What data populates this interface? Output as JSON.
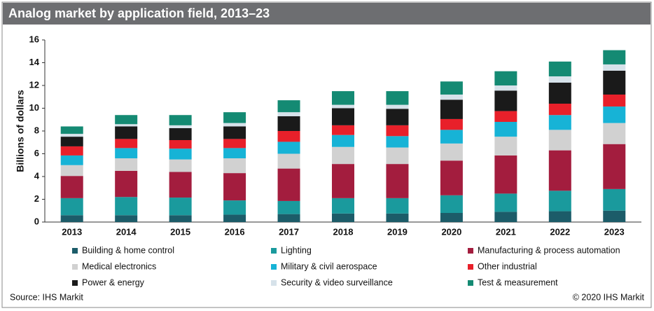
{
  "chart_data": {
    "type": "stacked_bar",
    "title": "Analog market by application field, 2013–23",
    "y_label": "Billions of dollars",
    "source": "Source: IHS Markit",
    "credit": "© 2020 IHS Markit",
    "categories": [
      "2013",
      "2014",
      "2015",
      "2016",
      "2017",
      "2018",
      "2019",
      "2020",
      "2021",
      "2022",
      "2023"
    ],
    "ylim": [
      0,
      16
    ],
    "yticks": [
      0,
      2,
      4,
      6,
      8,
      10,
      12,
      14,
      16
    ],
    "grid": false,
    "series": [
      {
        "name": "Building & home control",
        "color": "#1c5c69",
        "values": [
          0.6,
          0.6,
          0.6,
          0.65,
          0.7,
          0.75,
          0.75,
          0.8,
          0.9,
          0.95,
          1.0
        ]
      },
      {
        "name": "Lighting",
        "color": "#1a9a9d",
        "values": [
          1.5,
          1.6,
          1.55,
          1.25,
          1.15,
          1.35,
          1.35,
          1.55,
          1.6,
          1.8,
          1.9
        ]
      },
      {
        "name": "Manufacturing & process automation",
        "color": "#a31d3e",
        "values": [
          1.95,
          2.3,
          2.25,
          2.4,
          2.85,
          3.0,
          3.0,
          3.05,
          3.35,
          3.55,
          3.95
        ]
      },
      {
        "name": "Medical electronics",
        "color": "#d1d1d1",
        "values": [
          0.95,
          1.1,
          1.1,
          1.3,
          1.3,
          1.5,
          1.45,
          1.5,
          1.65,
          1.8,
          1.85
        ]
      },
      {
        "name": "Military & civil aerospace",
        "color": "#17b3d6",
        "values": [
          0.85,
          0.9,
          0.95,
          0.9,
          1.05,
          1.05,
          1.0,
          1.2,
          1.3,
          1.3,
          1.45
        ]
      },
      {
        "name": "Other industrial",
        "color": "#e8202a",
        "values": [
          0.8,
          0.8,
          0.75,
          0.8,
          0.95,
          0.85,
          0.95,
          0.95,
          0.95,
          1.0,
          1.05
        ]
      },
      {
        "name": "Power & energy",
        "color": "#1a1a1a",
        "values": [
          0.85,
          1.1,
          1.05,
          1.1,
          1.3,
          1.5,
          1.45,
          1.7,
          1.8,
          1.85,
          2.1
        ]
      },
      {
        "name": "Security & video surveillance",
        "color": "#d6e2ea",
        "values": [
          0.25,
          0.2,
          0.25,
          0.3,
          0.35,
          0.3,
          0.35,
          0.45,
          0.45,
          0.55,
          0.55
        ]
      },
      {
        "name": "Test & measurement",
        "color": "#148a73",
        "values": [
          0.65,
          0.8,
          0.9,
          0.95,
          1.05,
          1.2,
          1.2,
          1.15,
          1.25,
          1.3,
          1.25
        ]
      }
    ]
  }
}
